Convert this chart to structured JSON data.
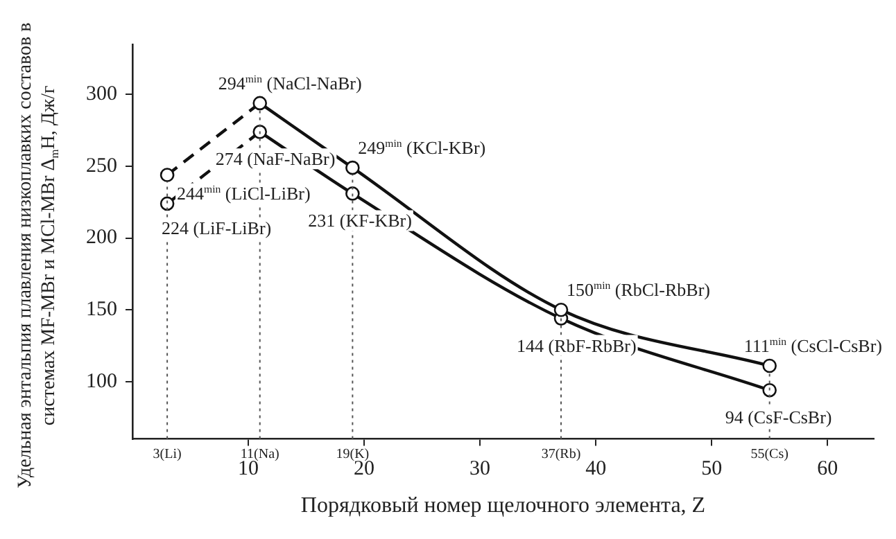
{
  "chart_data": {
    "type": "line",
    "xlabel": "Порядковый номер щелочного элемента, Z",
    "ylabel": "Удельная энтальпия плавления низкоплавких составов в системах MF-MBr и MCl-MBr Δ$_{m}$H, Дж/г",
    "xlim": [
      0,
      64
    ],
    "xticks": [
      10,
      20,
      30,
      40,
      50,
      60
    ],
    "ylim": [
      60,
      335
    ],
    "yticks": [
      100,
      150,
      200,
      250,
      300
    ],
    "grid": false,
    "legend": false,
    "marker": "circle",
    "series": [
      {
        "color": "#111111",
        "line_style": "dashed",
        "x": [
          3,
          11
        ],
        "values": [
          244,
          294
        ]
      },
      {
        "color": "#111111",
        "line_style": "solid",
        "x": [
          11,
          19,
          37,
          55
        ],
        "values": [
          294,
          249,
          150,
          111
        ]
      },
      {
        "color": "#111111",
        "line_style": "dashed",
        "x": [
          3,
          11
        ],
        "values": [
          224,
          274
        ]
      },
      {
        "color": "#111111",
        "line_style": "solid",
        "x": [
          11,
          19,
          37,
          55
        ],
        "values": [
          274,
          231,
          144,
          94
        ]
      }
    ],
    "ref_lines": [
      {
        "axis": "x",
        "value": 3,
        "label": "3(Li)",
        "color": "#555555",
        "line_style": "dotted"
      },
      {
        "axis": "x",
        "value": 11,
        "label": "11(Na)",
        "color": "#555555",
        "line_style": "dotted"
      },
      {
        "axis": "x",
        "value": 19,
        "label": "19(K)",
        "color": "#555555",
        "line_style": "dotted"
      },
      {
        "axis": "x",
        "value": 37,
        "label": "37(Rb)",
        "color": "#555555",
        "line_style": "dotted"
      },
      {
        "axis": "x",
        "value": 55,
        "label": "55(Cs)",
        "color": "#555555",
        "line_style": "dotted"
      }
    ],
    "annotations": [
      {
        "text": "244$^{min}$ (LiCl-LiBr)",
        "x": 3,
        "y": 244
      },
      {
        "text": "224 (LiF-LiBr)",
        "x": 3,
        "y": 224
      },
      {
        "text": "294$^{min}$ (NaCl-NaBr)",
        "x": 11,
        "y": 294
      },
      {
        "text": "274 (NaF-NaBr)",
        "x": 11,
        "y": 274
      },
      {
        "text": "249$^{min}$ (KCl-KBr)",
        "x": 19,
        "y": 249
      },
      {
        "text": "231 (KF-KBr)",
        "x": 19,
        "y": 231
      },
      {
        "text": "150$^{min}$ (RbCl-RbBr)",
        "x": 37,
        "y": 150
      },
      {
        "text": "144 (RbF-RbBr)",
        "x": 37,
        "y": 144
      },
      {
        "text": "111$^{min}$ (CsCl-CsBr)",
        "x": 55,
        "y": 111
      },
      {
        "text": "94 (CsF-CsBr)",
        "x": 55,
        "y": 94
      }
    ]
  }
}
